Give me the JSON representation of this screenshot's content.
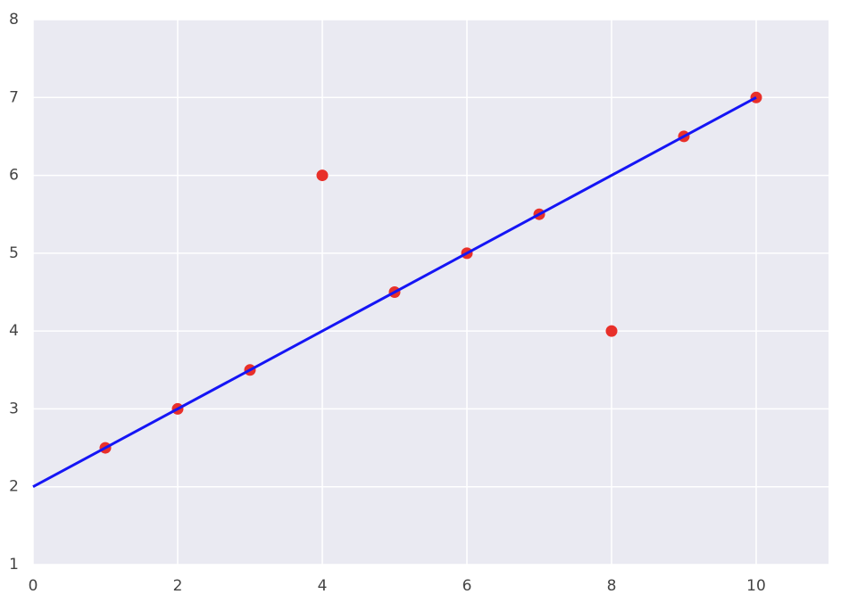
{
  "chart_data": {
    "type": "scatter",
    "series": [
      {
        "type": "scatter",
        "color": "#e8302a",
        "x": [
          1,
          2,
          3,
          4,
          5,
          6,
          7,
          8,
          9,
          10
        ],
        "values": [
          2.5,
          3,
          3.5,
          6,
          4.5,
          5,
          5.5,
          4,
          6.5,
          7
        ]
      },
      {
        "type": "line",
        "color": "#1515f5",
        "x": [
          0,
          10
        ],
        "values": [
          2,
          7
        ]
      }
    ],
    "xlim": [
      0,
      11
    ],
    "ylim": [
      1,
      8
    ],
    "xticks": [
      0,
      2,
      4,
      6,
      8,
      10
    ],
    "yticks": [
      1,
      2,
      3,
      4,
      5,
      6,
      7,
      8
    ],
    "grid": true,
    "background": "#eaeaf2"
  }
}
